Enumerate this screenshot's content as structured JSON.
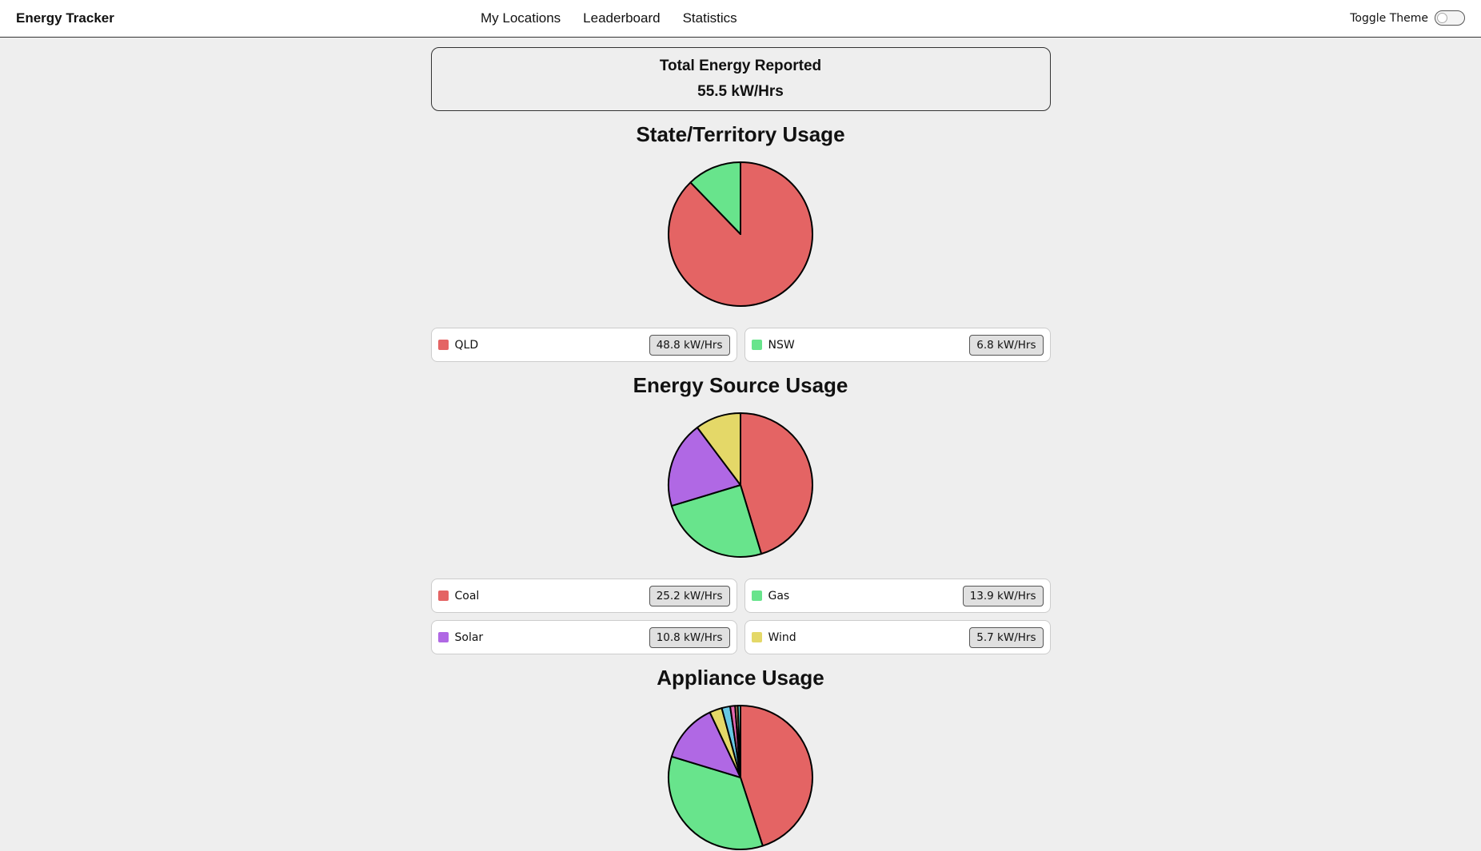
{
  "nav": {
    "brand": "Energy Tracker",
    "links": [
      "My Locations",
      "Leaderboard",
      "Statistics"
    ],
    "toggle": "Toggle Theme"
  },
  "summary": {
    "title": "Total Energy Reported",
    "value": "55.5 kW/Hrs"
  },
  "chart_data": [
    {
      "type": "pie",
      "title": "State/Territory Usage",
      "categories": [
        "QLD",
        "NSW"
      ],
      "values": [
        48.8,
        6.8
      ],
      "value_labels": [
        "48.8 kW/Hrs",
        "6.8 kW/Hrs"
      ],
      "colors": [
        "#e46464",
        "#68e48c"
      ]
    },
    {
      "type": "pie",
      "title": "Energy Source Usage",
      "categories": [
        "Coal",
        "Gas",
        "Solar",
        "Wind"
      ],
      "values": [
        25.2,
        13.9,
        10.8,
        5.7
      ],
      "value_labels": [
        "25.2 kW/Hrs",
        "13.9 kW/Hrs",
        "10.8 kW/Hrs",
        "5.7 kW/Hrs"
      ],
      "colors": [
        "#e46464",
        "#68e48c",
        "#b068e4",
        "#e4d868"
      ]
    },
    {
      "type": "pie",
      "title": "Appliance Usage",
      "categories": [
        null,
        null,
        null,
        null,
        null,
        null,
        null,
        null
      ],
      "values": [
        45,
        34.7,
        13.3,
        2.8,
        1.9,
        1.1,
        0.6,
        0.6
      ],
      "colors": [
        "#e46464",
        "#68e48c",
        "#b068e4",
        "#e4d868",
        "#68c8e4",
        "#e468b0",
        "#e4a068",
        "#68e4d8"
      ]
    }
  ]
}
